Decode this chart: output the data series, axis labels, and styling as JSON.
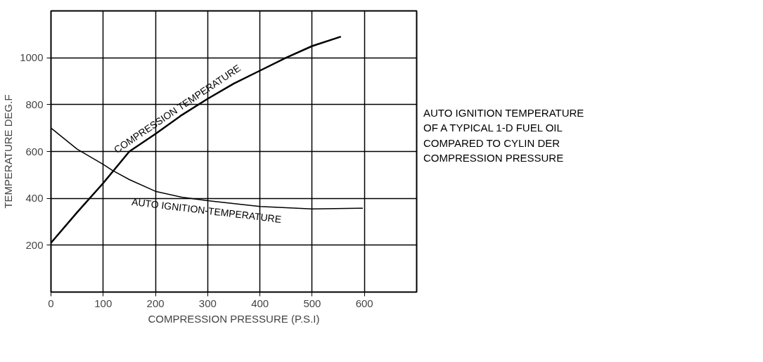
{
  "chart_data": {
    "type": "line",
    "title": "AUTO IGNITION TEMPERATURE\nOF A TYPICAL 1-D FUEL OIL\nCOMPARED TO CYLIN DER\nCOMPRESSION PRESSURE",
    "xlabel": "COMPRESSION PRESSURE (P.S.I)",
    "ylabel": "TEMPERATURE DEG.F",
    "series": [
      {
        "name": "COMPRESSION TEMPERATURE",
        "color": "#000000",
        "x": [
          0,
          50,
          100,
          150,
          200,
          250,
          300,
          350,
          400,
          450,
          500,
          555
        ],
        "values": [
          210,
          340,
          465,
          600,
          675,
          755,
          825,
          890,
          945,
          1000,
          1050,
          1090
        ]
      },
      {
        "name": "AUTO IGNITION-TEMPERATURE",
        "color": "#000000",
        "x": [
          0,
          50,
          100,
          117,
          150,
          200,
          250,
          300,
          400,
          500,
          597
        ],
        "values": [
          700,
          610,
          545,
          520,
          480,
          430,
          405,
          390,
          365,
          355,
          358
        ]
      }
    ],
    "xlim": [
      0,
      700
    ],
    "xticks": [
      0,
      100,
      200,
      300,
      400,
      500,
      600
    ],
    "ylim": [
      0,
      1200
    ],
    "yticks": [
      200,
      400,
      600,
      800,
      1000
    ],
    "grid": true,
    "marker": "none",
    "line_style": "solid"
  }
}
